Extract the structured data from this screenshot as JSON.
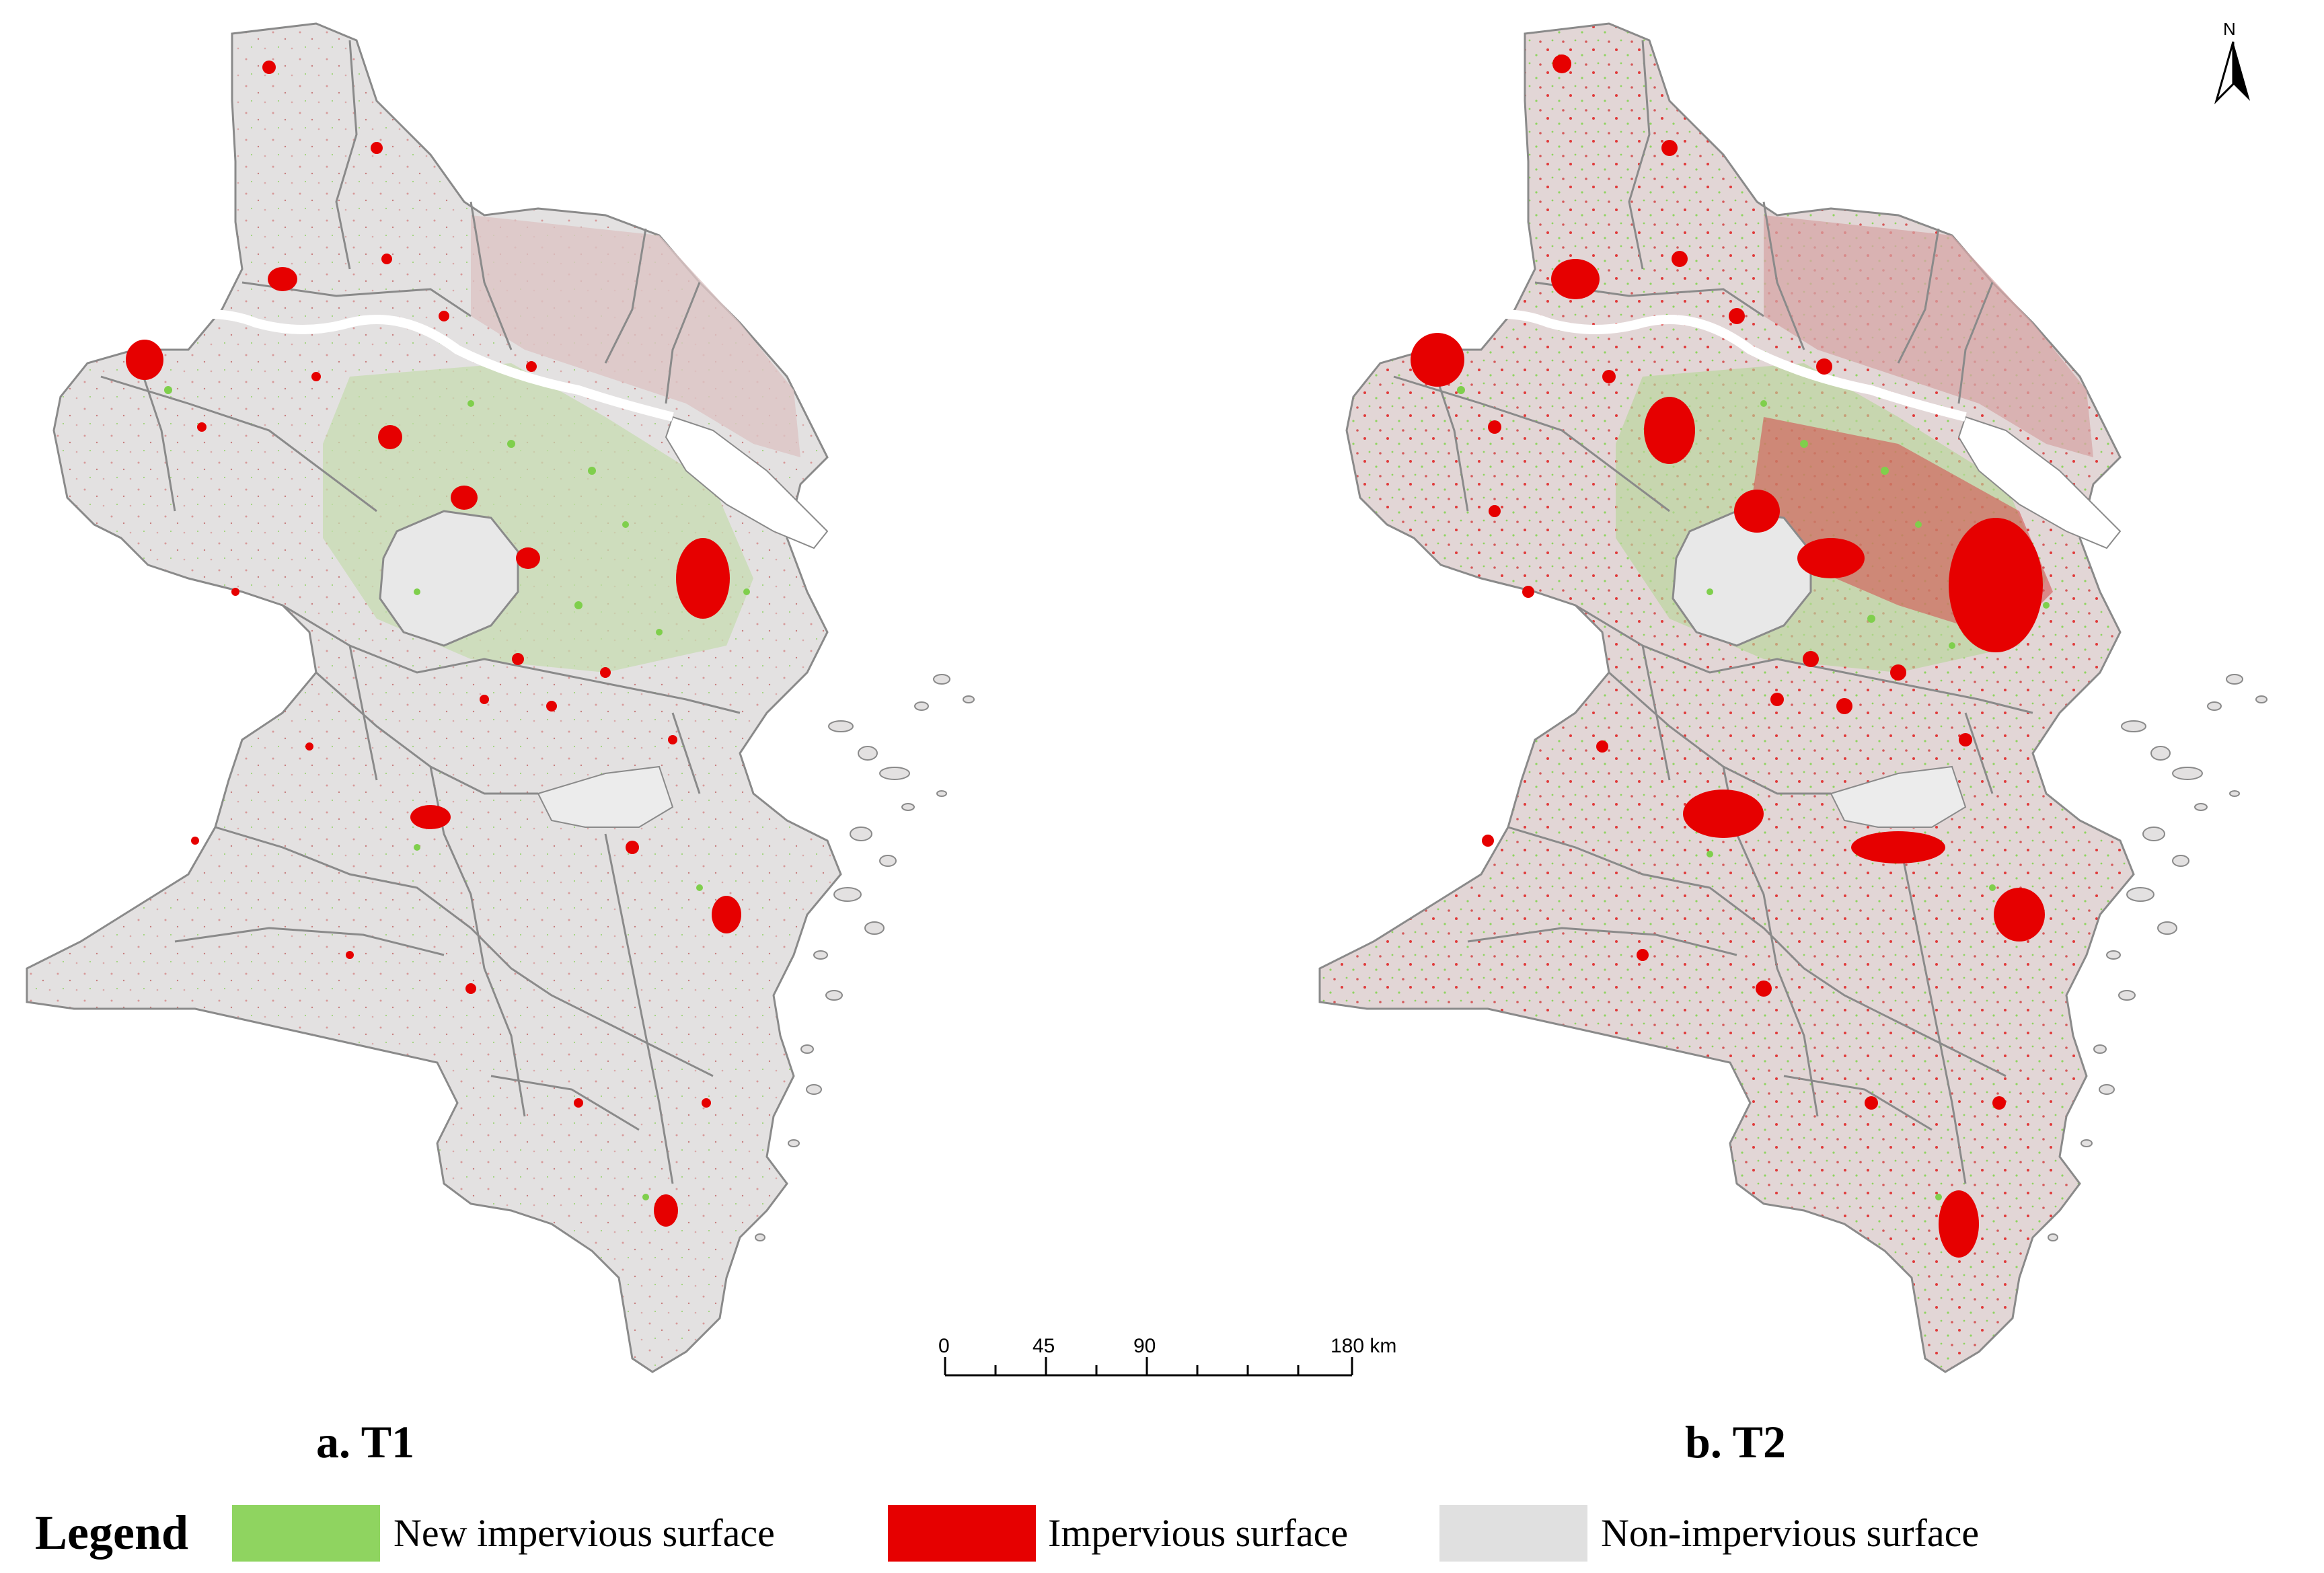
{
  "panels": [
    {
      "label": "a. T1"
    },
    {
      "label": "b. T2"
    }
  ],
  "north_arrow": {
    "letter": "N"
  },
  "scale_bar": {
    "ticks": [
      "0",
      "45",
      "90",
      "180 km"
    ]
  },
  "legend": {
    "title": "Legend",
    "items": [
      {
        "label": "New impervious surface",
        "color": "#8fd460"
      },
      {
        "label": "Impervious surface",
        "color": "#e60000"
      },
      {
        "label": "Non-impervious surface",
        "color": "#e0e0e0"
      }
    ]
  },
  "colors": {
    "land": "#e3e1e1",
    "boundary": "#8a8a8a",
    "water": "#ffffff"
  }
}
